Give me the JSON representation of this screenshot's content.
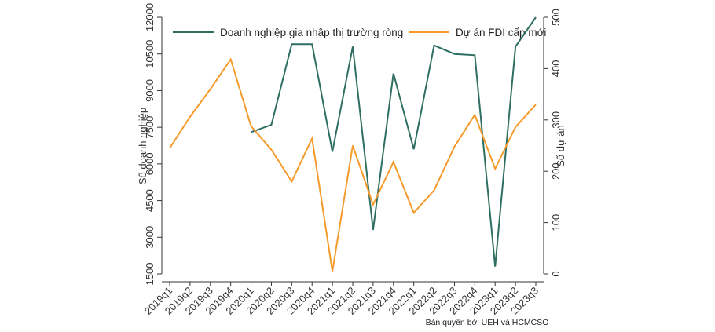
{
  "chart_data": {
    "type": "line",
    "categories": [
      "2019q1",
      "2019q2",
      "2019q3",
      "2019q4",
      "2020q1",
      "2020q2",
      "2020q3",
      "2020q4",
      "2021q1",
      "2021q2",
      "2021q3",
      "2021q4",
      "2022q1",
      "2022q2",
      "2022q3",
      "2022q4",
      "2023q1",
      "2023q2",
      "2023q3"
    ],
    "y_left": {
      "label": "Số doanh nghiệp",
      "ticks": [
        1500,
        3000,
        4500,
        6000,
        7500,
        9000,
        10500,
        12000
      ],
      "ylim": [
        1500,
        12000
      ]
    },
    "y_right": {
      "label": "Số dự án",
      "ticks": [
        0,
        100,
        200,
        300,
        400,
        500
      ],
      "ylim": [
        0,
        500
      ]
    },
    "series": [
      {
        "name": "Doanh nghiệp gia nhập thị trường ròng",
        "axis": "left",
        "color": "#2f6f62",
        "values": [
          null,
          null,
          null,
          null,
          7300,
          7600,
          10900,
          10900,
          6500,
          10800,
          3300,
          9700,
          6600,
          10850,
          10500,
          10450,
          1800,
          10800,
          12000
        ]
      },
      {
        "name": "Dự án FDI cấp mới",
        "axis": "right",
        "color": "#f59a2b",
        "values": [
          245,
          306,
          360,
          418,
          288,
          242,
          180,
          264,
          5,
          250,
          135,
          218,
          119,
          163,
          248,
          310,
          205,
          286,
          330
        ]
      }
    ],
    "legend_placement": "top",
    "grid": false
  },
  "credit": "Bản quyền bởi UEH và HCMCSO"
}
